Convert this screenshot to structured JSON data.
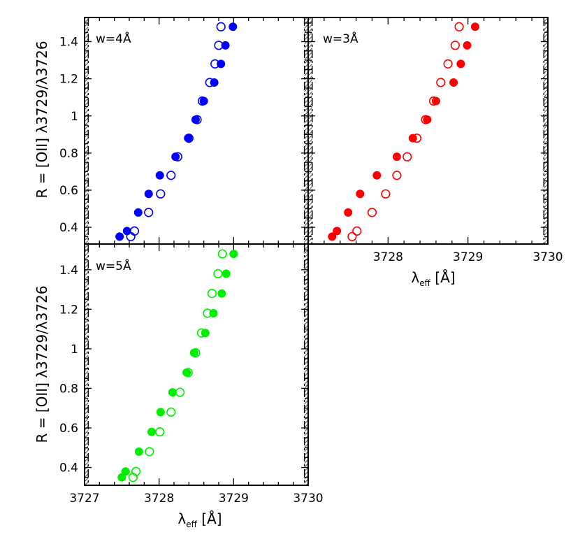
{
  "chart_data": [
    {
      "type": "scatter",
      "panel": "w=4Å",
      "label": "w=4Å",
      "color": "#0000ff",
      "xlim": [
        3727,
        3730
      ],
      "ylim": [
        0.31,
        1.53
      ],
      "xlabel": "",
      "ylabel": "R = [OII] λ3729/λ3726",
      "xticks": [],
      "yticks": [
        "0.4",
        "0.6",
        "0.8",
        "1",
        "1.2",
        "1.4"
      ],
      "excluded_left": [
        3727.0,
        3727.05
      ],
      "excluded_right": [
        3729.95,
        3730.0
      ],
      "series": [
        {
          "style": "filled",
          "x": [
            3727.47,
            3727.57,
            3727.72,
            3727.86,
            3728.01,
            3728.22,
            3728.39,
            3728.49,
            3728.6,
            3728.74,
            3728.83,
            3728.89,
            3728.99
          ],
          "y": [
            0.35,
            0.38,
            0.48,
            0.58,
            0.68,
            0.78,
            0.88,
            0.98,
            1.08,
            1.18,
            1.28,
            1.38,
            1.48
          ]
        },
        {
          "style": "open",
          "x": [
            3727.62,
            3727.67,
            3727.86,
            3728.02,
            3728.16,
            3728.25,
            3728.4,
            3728.51,
            3728.58,
            3728.68,
            3728.75,
            3728.8,
            3728.83
          ],
          "y": [
            0.35,
            0.38,
            0.48,
            0.58,
            0.68,
            0.78,
            0.88,
            0.98,
            1.08,
            1.18,
            1.28,
            1.38,
            1.48
          ]
        }
      ]
    },
    {
      "type": "scatter",
      "panel": "w=3Å",
      "label": "w=3Å",
      "color": "#ff0000",
      "xlim": [
        3727,
        3730
      ],
      "ylim": [
        0.31,
        1.53
      ],
      "xlabel": "λeff [Å]",
      "ylabel": "",
      "xticks": [
        "3728",
        "3729",
        "3730"
      ],
      "yticks": [],
      "excluded_left": [
        3727.0,
        3727.05
      ],
      "excluded_right": [
        3729.95,
        3730.0
      ],
      "series": [
        {
          "style": "filled",
          "x": [
            3727.3,
            3727.36,
            3727.5,
            3727.65,
            3727.86,
            3728.11,
            3728.31,
            3728.49,
            3728.6,
            3728.82,
            3728.91,
            3728.99,
            3729.09
          ],
          "y": [
            0.35,
            0.38,
            0.48,
            0.58,
            0.68,
            0.78,
            0.88,
            0.98,
            1.08,
            1.18,
            1.28,
            1.38,
            1.48
          ]
        },
        {
          "style": "open",
          "x": [
            3727.55,
            3727.61,
            3727.8,
            3727.97,
            3728.11,
            3728.24,
            3728.36,
            3728.47,
            3728.57,
            3728.66,
            3728.75,
            3728.84,
            3728.89
          ],
          "y": [
            0.35,
            0.38,
            0.48,
            0.58,
            0.68,
            0.78,
            0.88,
            0.98,
            1.08,
            1.18,
            1.28,
            1.38,
            1.48
          ]
        }
      ]
    },
    {
      "type": "scatter",
      "panel": "w=5Å",
      "label": "w=5Å",
      "color": "#00ee00",
      "xlim": [
        3727,
        3730
      ],
      "ylim": [
        0.31,
        1.53
      ],
      "xlabel": "λeff [Å]",
      "ylabel": "R = [OII] λ3729/λ3726",
      "xticks": [
        "3727",
        "3728",
        "3729",
        "3730"
      ],
      "yticks": [
        "0.4",
        "0.6",
        "0.8",
        "1",
        "1.2",
        "1.4"
      ],
      "excluded_left": [
        3727.0,
        3727.05
      ],
      "excluded_right": [
        3729.95,
        3730.0
      ],
      "series": [
        {
          "style": "filled",
          "x": [
            3727.5,
            3727.55,
            3727.73,
            3727.9,
            3728.02,
            3728.18,
            3728.37,
            3728.47,
            3728.62,
            3728.73,
            3728.84,
            3728.9,
            3729.0
          ],
          "y": [
            0.35,
            0.38,
            0.48,
            0.58,
            0.68,
            0.78,
            0.88,
            0.98,
            1.08,
            1.18,
            1.28,
            1.38,
            1.48
          ]
        },
        {
          "style": "open",
          "x": [
            3727.65,
            3727.69,
            3727.87,
            3728.01,
            3728.16,
            3728.28,
            3728.39,
            3728.49,
            3728.57,
            3728.65,
            3728.71,
            3728.79,
            3728.85
          ],
          "y": [
            0.35,
            0.38,
            0.48,
            0.58,
            0.68,
            0.78,
            0.88,
            0.98,
            1.08,
            1.18,
            1.28,
            1.38,
            1.48
          ]
        }
      ]
    }
  ]
}
